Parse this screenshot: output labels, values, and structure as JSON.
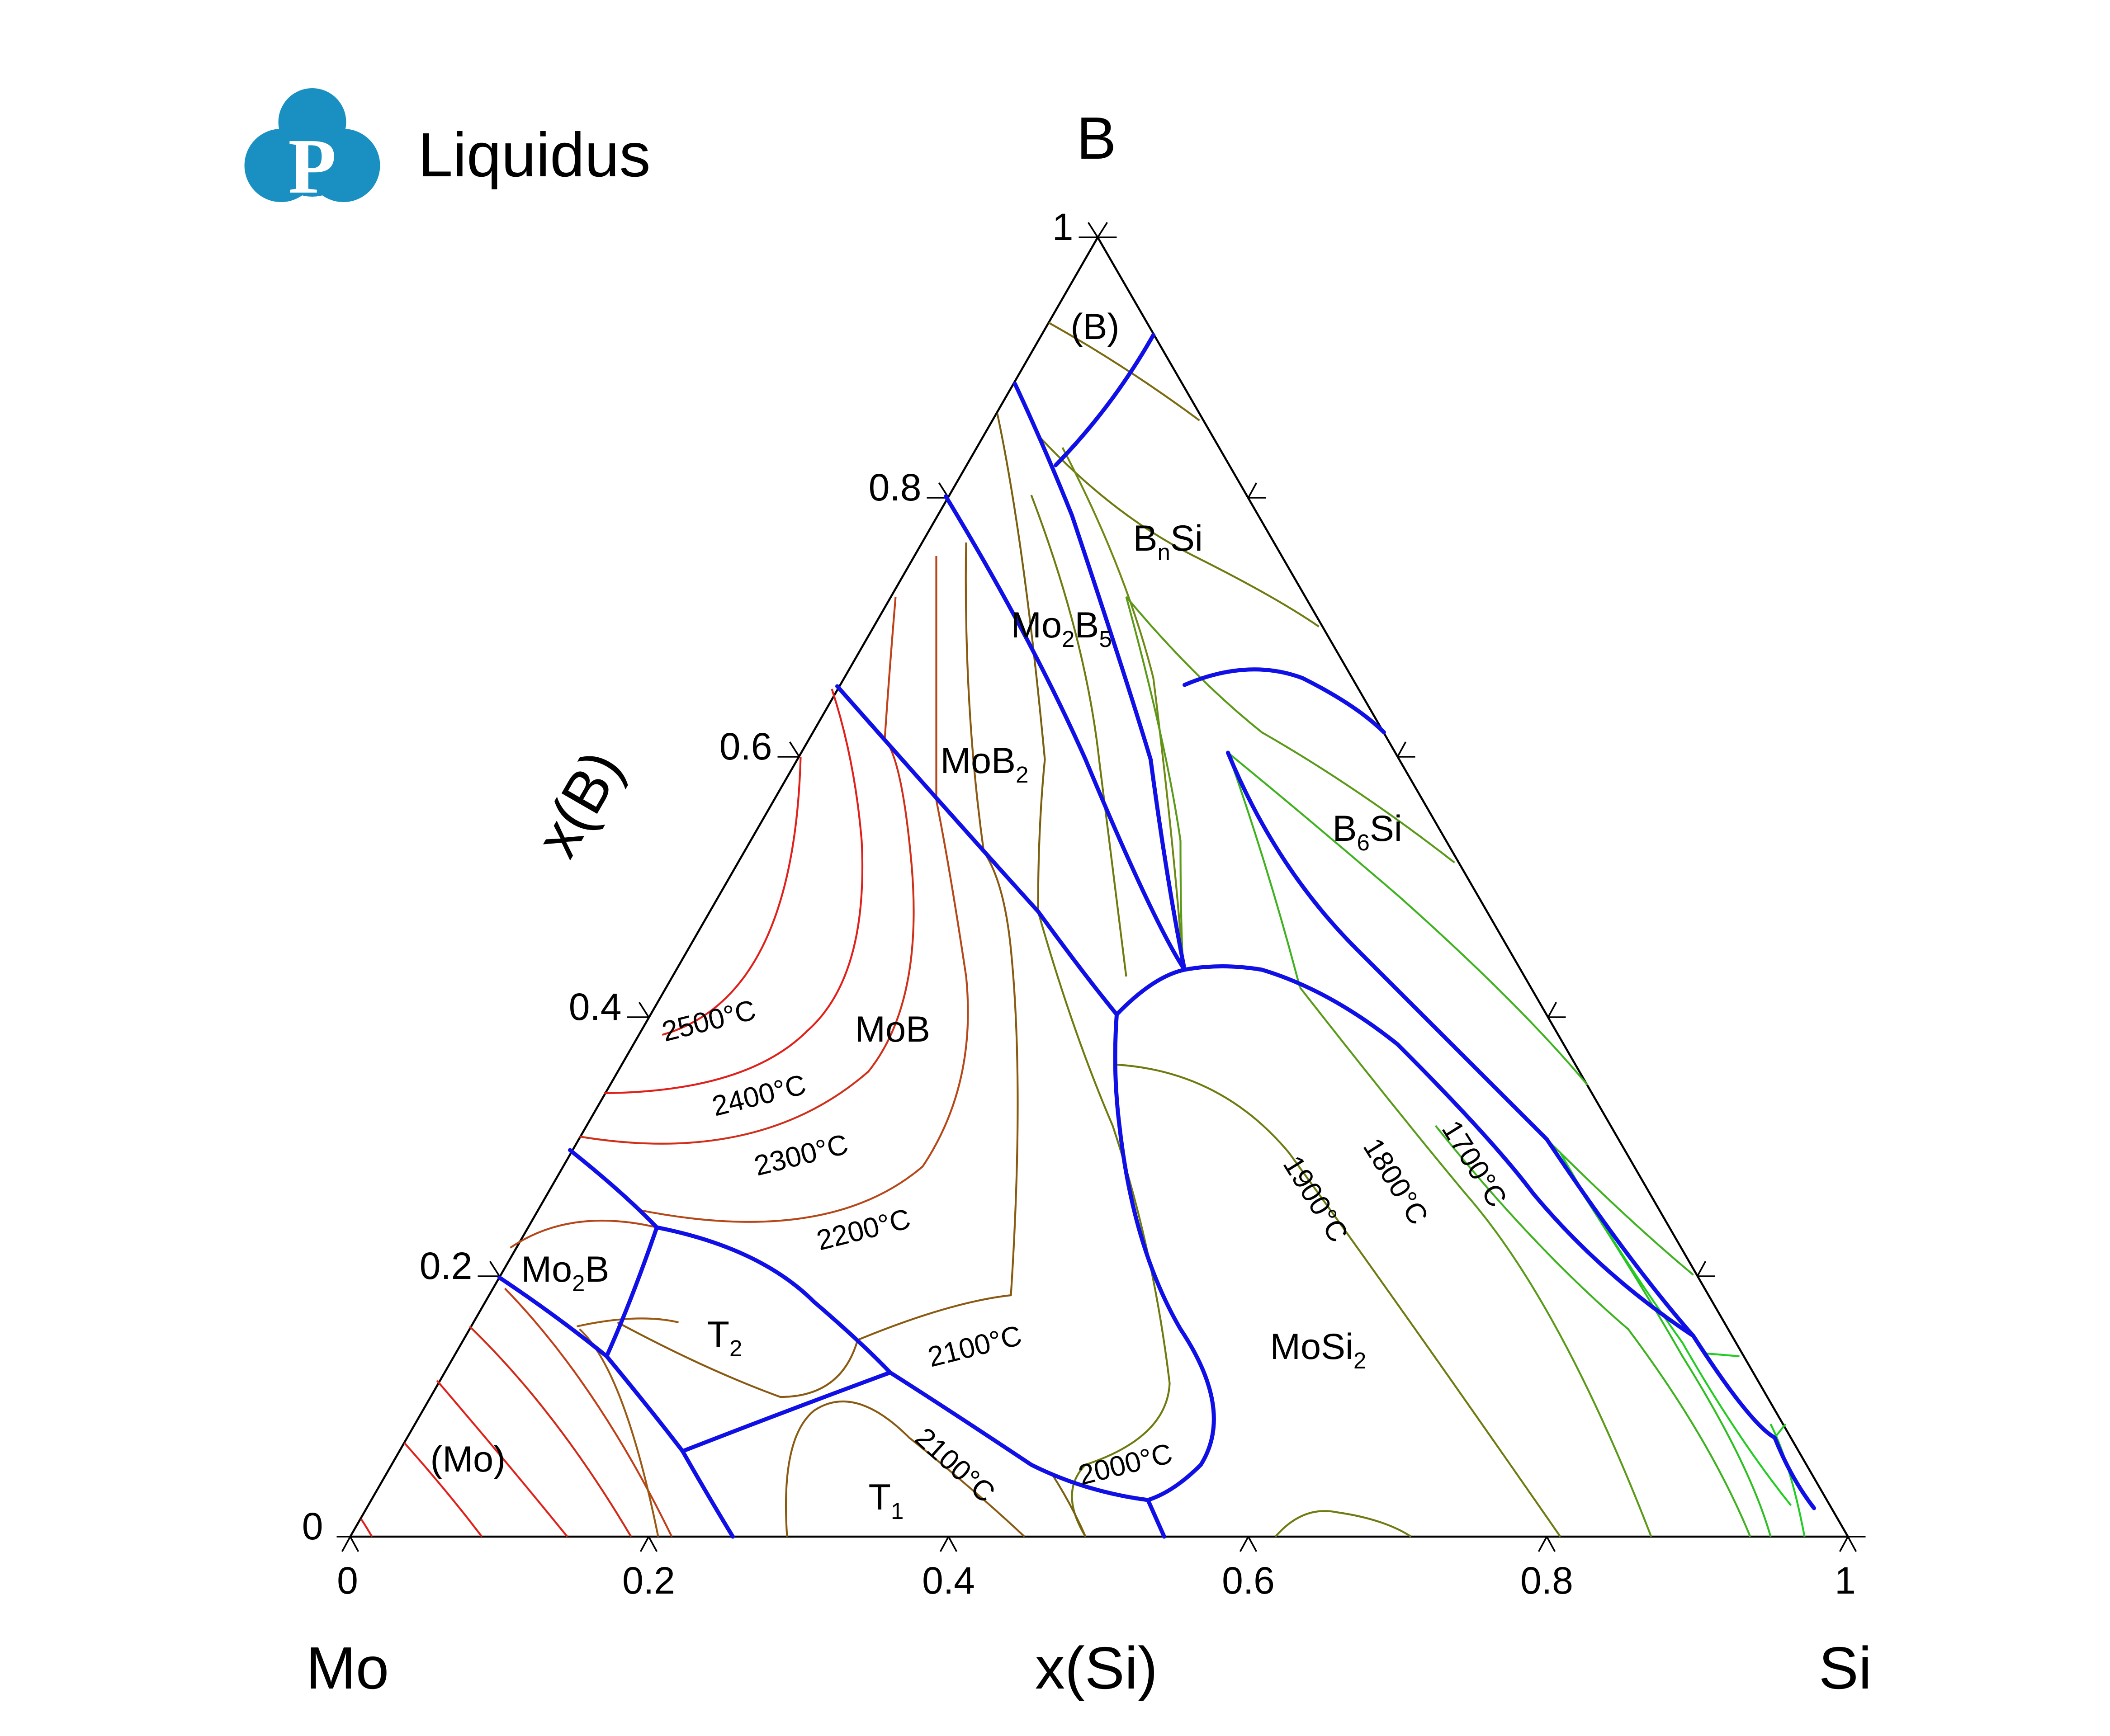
{
  "header": {
    "logo_letter": "P",
    "title": "Liquidus"
  },
  "corners": {
    "top": "B",
    "left": "Mo",
    "right": "Si"
  },
  "axes": {
    "bottom_label": "x(Si)",
    "left_label": "x(B)",
    "bottom_ticks": [
      "0",
      "0.2",
      "0.4",
      "0.6",
      "0.8",
      "1"
    ],
    "left_ticks": [
      "0",
      "0.2",
      "0.4",
      "0.6",
      "0.8",
      "1"
    ]
  },
  "regions": {
    "B": "(B)",
    "BnSi_main": "B",
    "BnSi_sub": "n",
    "BnSi_tail": "Si",
    "Mo2B5_a": "Mo",
    "Mo2B5_s1": "2",
    "Mo2B5_b": "B",
    "Mo2B5_s2": "5",
    "MoB2_a": "MoB",
    "MoB2_s": "2",
    "B6Si_a": "B",
    "B6Si_s": "6",
    "B6Si_b": "Si",
    "MoB": "MoB",
    "Mo2B_a": "Mo",
    "Mo2B_s": "2",
    "Mo2B_b": "B",
    "T2_a": "T",
    "T2_s": "2",
    "T1_a": "T",
    "T1_s": "1",
    "MoSi2_a": "MoSi",
    "MoSi2_s": "2",
    "Mo": "(Mo)"
  },
  "isotherm_labels": {
    "t2500": "2500°C",
    "t2400": "2400°C",
    "t2300": "2300°C",
    "t2200": "2200°C",
    "t2100a": "2100°C",
    "t2100b": "2100°C",
    "t2000": "2000°C",
    "t1900": "1900°C",
    "t1800": "1800°C",
    "t1700": "1700°C"
  },
  "colors": {
    "boundary": "#1010e6",
    "logo": "#1a8fc2",
    "iso_hot": "#e0201a",
    "iso_warm": "#c0401a",
    "iso_mid": "#8a5a12",
    "iso_olive": "#6f7a0f",
    "iso_cool": "#3fb21f",
    "iso_bright": "#22cc22"
  }
}
